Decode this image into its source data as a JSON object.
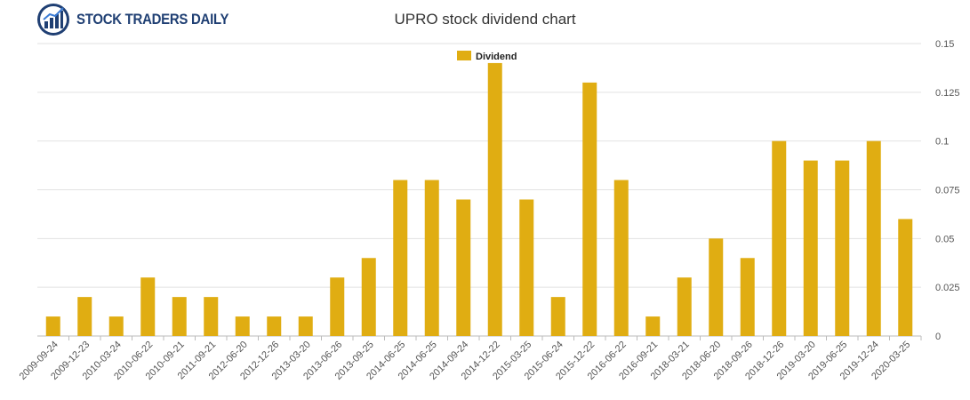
{
  "logo": {
    "text": "STOCK TRADERS DAILY"
  },
  "chart_data": {
    "type": "bar",
    "title": "UPRO stock dividend chart",
    "xlabel": "",
    "ylabel": "",
    "ylim": [
      0,
      0.15
    ],
    "yticks": [
      "0",
      "0.025",
      "0.05",
      "0.075",
      "0.1",
      "0.125",
      "0.15"
    ],
    "ytick_values": [
      0,
      0.025,
      0.05,
      0.075,
      0.1,
      0.125,
      0.15
    ],
    "grid": true,
    "legend": {
      "position": "top-center"
    },
    "bar_color": "#e0ad12",
    "categories": [
      "2009-09-24",
      "2009-12-23",
      "2010-03-24",
      "2010-06-22",
      "2010-09-21",
      "2011-09-21",
      "2012-06-20",
      "2012-12-26",
      "2013-03-20",
      "2013-06-26",
      "2013-09-25",
      "2014-06-25",
      "2014-06-25",
      "2014-09-24",
      "2014-12-22",
      "2015-03-25",
      "2015-06-24",
      "2015-12-22",
      "2016-06-22",
      "2016-09-21",
      "2018-03-21",
      "2018-06-20",
      "2018-09-26",
      "2018-12-26",
      "2019-03-20",
      "2019-06-25",
      "2019-12-24",
      "2020-03-25"
    ],
    "series": [
      {
        "name": "Dividend",
        "values": [
          0.01,
          0.02,
          0.01,
          0.03,
          0.02,
          0.02,
          0.01,
          0.01,
          0.01,
          0.03,
          0.04,
          0.08,
          0.08,
          0.07,
          0.14,
          0.07,
          0.02,
          0.13,
          0.08,
          0.01,
          0.03,
          0.05,
          0.04,
          0.1,
          0.09,
          0.09,
          0.1,
          0.06
        ]
      }
    ]
  }
}
